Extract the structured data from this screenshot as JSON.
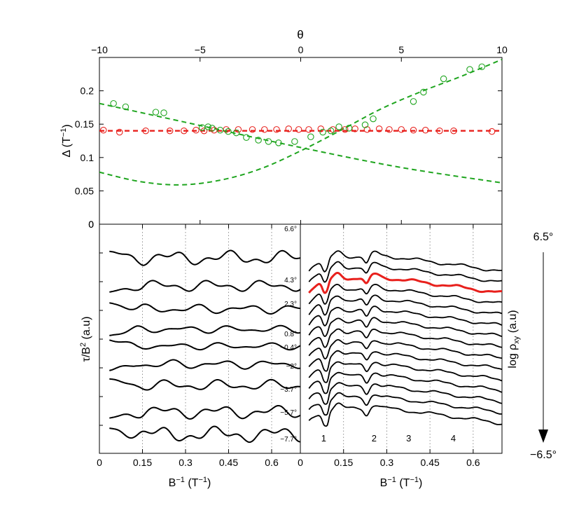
{
  "figure": {
    "top_xlabel": "θ",
    "top_ylabel": "Δ (T",
    "top_ylabel_sup": "−1",
    "top_ylabel_end": ")",
    "left_ylabel": "τ/B",
    "left_ylabel_sup": "2",
    "left_ylabel_end": " (a.u)",
    "right_ylabel": "log ρ",
    "right_ylabel_sub": "xy",
    "right_ylabel_end": " (a.u)",
    "bottom_xlabel": "B",
    "bottom_xlabel_sup": "−1",
    "bottom_xlabel_end": " (T",
    "bottom_xlabel_sup2": "−1",
    "bottom_xlabel_end2": ")",
    "arrow_top_label": "6.5°",
    "arrow_bottom_label": "−6.5°",
    "colors": {
      "red": "#e8201c",
      "green": "#1fa51f",
      "black": "#000000",
      "grid": "#777777"
    }
  },
  "chart_data": [
    {
      "panel": "top",
      "type": "scatter",
      "xlabel": "θ",
      "ylabel": "Δ (T^-1)",
      "xlim": [
        -10,
        10
      ],
      "ylim": [
        0,
        0.25
      ],
      "x_ticks": [
        -10,
        -5,
        0,
        5,
        10
      ],
      "y_ticks": [
        0,
        0.05,
        0.1,
        0.15,
        0.2
      ],
      "series": [
        {
          "color": "red",
          "marker": "circle",
          "points": [
            [
              -9.8,
              0.141
            ],
            [
              -9.0,
              0.138
            ],
            [
              -7.7,
              0.14
            ],
            [
              -6.5,
              0.14
            ],
            [
              -5.8,
              0.14
            ],
            [
              -5.2,
              0.141
            ],
            [
              -4.8,
              0.14
            ],
            [
              -4.3,
              0.141
            ],
            [
              -3.7,
              0.142
            ],
            [
              -3.1,
              0.142
            ],
            [
              -2.4,
              0.142
            ],
            [
              -1.8,
              0.142
            ],
            [
              -1.2,
              0.142
            ],
            [
              -0.6,
              0.143
            ],
            [
              -0.1,
              0.142
            ],
            [
              0.4,
              0.142
            ],
            [
              1.0,
              0.143
            ],
            [
              1.6,
              0.142
            ],
            [
              2.2,
              0.142
            ],
            [
              2.7,
              0.143
            ],
            [
              3.3,
              0.142
            ],
            [
              3.9,
              0.143
            ],
            [
              4.4,
              0.142
            ],
            [
              5.0,
              0.142
            ],
            [
              5.6,
              0.141
            ],
            [
              6.2,
              0.141
            ],
            [
              6.9,
              0.14
            ],
            [
              7.6,
              0.14
            ],
            [
              9.5,
              0.139
            ]
          ]
        },
        {
          "color": "green",
          "marker": "circle",
          "points": [
            [
              -9.3,
              0.181
            ],
            [
              -8.7,
              0.176
            ],
            [
              -7.2,
              0.168
            ],
            [
              -6.8,
              0.167
            ],
            [
              -4.9,
              0.145
            ],
            [
              -4.6,
              0.146
            ],
            [
              -4.4,
              0.144
            ],
            [
              -4.0,
              0.141
            ],
            [
              -3.6,
              0.139
            ],
            [
              -3.2,
              0.137
            ],
            [
              -2.7,
              0.13
            ],
            [
              -2.1,
              0.126
            ],
            [
              -1.6,
              0.124
            ],
            [
              -1.1,
              0.122
            ],
            [
              -0.3,
              0.124
            ],
            [
              0.5,
              0.131
            ],
            [
              1.1,
              0.138
            ],
            [
              1.5,
              0.14
            ],
            [
              1.9,
              0.146
            ],
            [
              2.4,
              0.144
            ],
            [
              3.2,
              0.149
            ],
            [
              3.6,
              0.158
            ],
            [
              5.6,
              0.184
            ],
            [
              6.1,
              0.198
            ],
            [
              7.1,
              0.218
            ],
            [
              8.4,
              0.232
            ],
            [
              9.0,
              0.236
            ]
          ]
        },
        {
          "color": "red",
          "style": "dashed",
          "name": "",
          "points": [
            [
              -10,
              0.14
            ],
            [
              10,
              0.14
            ]
          ]
        },
        {
          "color": "green",
          "style": "dashed",
          "curve": "decreasing",
          "points": [
            [
              -10,
              0.181
            ],
            [
              -5,
              0.148
            ],
            [
              0,
              0.115
            ],
            [
              5,
              0.085
            ],
            [
              10,
              0.062
            ]
          ]
        },
        {
          "color": "green",
          "style": "dashed",
          "curve": "increasing",
          "points": [
            [
              -10,
              0.078
            ],
            [
              -8,
              0.064
            ],
            [
              -6,
              0.059
            ],
            [
              -4,
              0.066
            ],
            [
              -2,
              0.083
            ],
            [
              0,
              0.11
            ],
            [
              2,
              0.141
            ],
            [
              4,
              0.173
            ],
            [
              6,
              0.199
            ],
            [
              8,
              0.222
            ],
            [
              10,
              0.247
            ]
          ]
        }
      ]
    },
    {
      "panel": "bottom-left",
      "type": "line",
      "xlabel": "B^-1 (T^-1)",
      "ylabel": "τ/B^2 (a.u)",
      "xlim": [
        0,
        0.7
      ],
      "x_ticks": [
        "0",
        "0.15",
        "0.3",
        "0.45",
        "0.6"
      ],
      "y_ticks_unlabeled": true,
      "vertical_guides": [
        0.15,
        0.3,
        0.45,
        0.6
      ],
      "curve_labels": [
        "6.6°",
        "4.3°",
        "2.3°",
        "0.8°",
        "−0.4°",
        "−2°",
        "−3.7°",
        "−5.7°",
        "−7.7°"
      ]
    },
    {
      "panel": "bottom-right",
      "type": "line",
      "xlabel": "B^-1 (T^-1)",
      "ylabel": "log ρxy (a.u)",
      "xlim": [
        0,
        0.7
      ],
      "x_ticks": [
        "0",
        "0.15",
        "0.3",
        "0.45",
        "0.6"
      ],
      "vertical_guides": [
        0.15,
        0.3,
        0.45,
        0.6
      ],
      "landau_labels": [
        "1",
        "2",
        "3",
        "4"
      ],
      "curve_count": 15,
      "highlighted_curve_index": 2
    }
  ]
}
